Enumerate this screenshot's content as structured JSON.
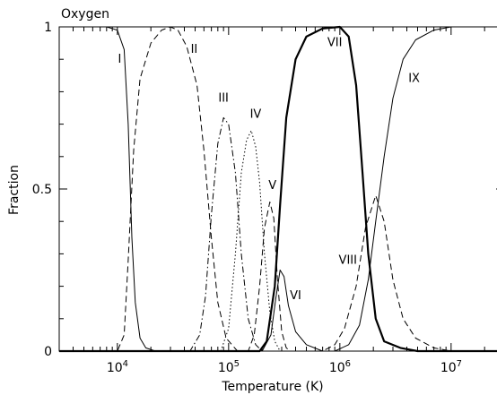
{
  "chart_data": {
    "type": "line",
    "title": "Oxygen",
    "xlabel": "Temperature (K)",
    "ylabel": "Fraction",
    "xscale": "log",
    "xlim": [
      3000,
      30000000
    ],
    "ylim": [
      0,
      1
    ],
    "x_ticks": [
      {
        "value": 10000,
        "base": "10",
        "exp": "4"
      },
      {
        "value": 100000,
        "base": "10",
        "exp": "5"
      },
      {
        "value": 1000000,
        "base": "10",
        "exp": "6"
      },
      {
        "value": 10000000,
        "base": "10",
        "exp": "7"
      }
    ],
    "y_ticks": [
      {
        "value": 0,
        "label": "0"
      },
      {
        "value": 0.5,
        "label": "0.5"
      },
      {
        "value": 1,
        "label": "1"
      }
    ],
    "grid": false,
    "legend": "none",
    "series": [
      {
        "label": "I",
        "style": "solid",
        "stroke": "#000000",
        "width": 1,
        "label_at": [
          10500,
          0.89
        ],
        "points": [
          [
            3000,
            1.0
          ],
          [
            8000,
            1.0
          ],
          [
            10000,
            0.99
          ],
          [
            11500,
            0.93
          ],
          [
            12500,
            0.7
          ],
          [
            13500,
            0.35
          ],
          [
            14500,
            0.15
          ],
          [
            16000,
            0.04
          ],
          [
            18000,
            0.01
          ],
          [
            22000,
            0.0
          ],
          [
            30000000,
            0.0
          ]
        ]
      },
      {
        "label": "II",
        "style": "dashed",
        "stroke": "#000000",
        "width": 1,
        "label_at": [
          49000,
          0.92
        ],
        "points": [
          [
            3000,
            0.0
          ],
          [
            10000,
            0.0
          ],
          [
            11500,
            0.05
          ],
          [
            12500,
            0.28
          ],
          [
            14000,
            0.62
          ],
          [
            16000,
            0.84
          ],
          [
            20000,
            0.95
          ],
          [
            25000,
            0.99
          ],
          [
            30000,
            1.0
          ],
          [
            35000,
            0.99
          ],
          [
            42000,
            0.94
          ],
          [
            52000,
            0.82
          ],
          [
            60000,
            0.62
          ],
          [
            70000,
            0.35
          ],
          [
            80000,
            0.15
          ],
          [
            95000,
            0.04
          ],
          [
            120000,
            0.0
          ],
          [
            30000000,
            0.0
          ]
        ]
      },
      {
        "label": "III",
        "style": "dashdot",
        "stroke": "#000000",
        "width": 1,
        "label_at": [
          90000,
          0.77
        ],
        "points": [
          [
            3000,
            0.0
          ],
          [
            45000,
            0.0
          ],
          [
            55000,
            0.05
          ],
          [
            62000,
            0.17
          ],
          [
            70000,
            0.42
          ],
          [
            80000,
            0.64
          ],
          [
            90000,
            0.72
          ],
          [
            100000,
            0.7
          ],
          [
            115000,
            0.55
          ],
          [
            130000,
            0.3
          ],
          [
            150000,
            0.1
          ],
          [
            175000,
            0.02
          ],
          [
            200000,
            0.0
          ],
          [
            30000000,
            0.0
          ]
        ]
      },
      {
        "label": "IV",
        "style": "dotted",
        "stroke": "#000000",
        "width": 1,
        "label_at": [
          175000,
          0.72
        ],
        "points": [
          [
            3000,
            0.0
          ],
          [
            85000,
            0.0
          ],
          [
            100000,
            0.07
          ],
          [
            115000,
            0.3
          ],
          [
            130000,
            0.55
          ],
          [
            145000,
            0.65
          ],
          [
            160000,
            0.68
          ],
          [
            175000,
            0.63
          ],
          [
            190000,
            0.52
          ],
          [
            210000,
            0.3
          ],
          [
            235000,
            0.12
          ],
          [
            260000,
            0.03
          ],
          [
            290000,
            0.0
          ],
          [
            30000000,
            0.0
          ]
        ]
      },
      {
        "label": "V",
        "style": "dashed",
        "stroke": "#000000",
        "width": 1,
        "label_at": [
          248000,
          0.5
        ],
        "points": [
          [
            3000,
            0.0
          ],
          [
            150000,
            0.0
          ],
          [
            170000,
            0.05
          ],
          [
            190000,
            0.2
          ],
          [
            210000,
            0.38
          ],
          [
            235000,
            0.46
          ],
          [
            255000,
            0.41
          ],
          [
            275000,
            0.22
          ],
          [
            300000,
            0.06
          ],
          [
            330000,
            0.01
          ],
          [
            360000,
            0.0
          ],
          [
            30000000,
            0.0
          ]
        ]
      },
      {
        "label": "VI",
        "style": "solid",
        "stroke": "#000000",
        "width": 1,
        "label_at": [
          400000,
          0.16
        ],
        "points": [
          [
            3000,
            0.0
          ],
          [
            200000,
            0.0
          ],
          [
            240000,
            0.05
          ],
          [
            265000,
            0.16
          ],
          [
            290000,
            0.25
          ],
          [
            315000,
            0.23
          ],
          [
            345000,
            0.14
          ],
          [
            400000,
            0.06
          ],
          [
            500000,
            0.02
          ],
          [
            700000,
            0.0
          ],
          [
            30000000,
            0.0
          ]
        ]
      },
      {
        "label": "VII",
        "style": "solid",
        "stroke": "#000000",
        "width": 2.2,
        "label_at": [
          900000,
          0.94
        ],
        "points": [
          [
            3000,
            0.0
          ],
          [
            190000,
            0.0
          ],
          [
            220000,
            0.03
          ],
          [
            260000,
            0.2
          ],
          [
            290000,
            0.45
          ],
          [
            330000,
            0.72
          ],
          [
            400000,
            0.9
          ],
          [
            500000,
            0.97
          ],
          [
            700000,
            0.995
          ],
          [
            1000000,
            1.0
          ],
          [
            1200000,
            0.97
          ],
          [
            1400000,
            0.82
          ],
          [
            1600000,
            0.55
          ],
          [
            1800000,
            0.3
          ],
          [
            2100000,
            0.1
          ],
          [
            2500000,
            0.03
          ],
          [
            3500000,
            0.01
          ],
          [
            5000000,
            0.0
          ],
          [
            30000000,
            0.0
          ]
        ]
      },
      {
        "label": "VIII",
        "style": "dashed",
        "stroke": "#000000",
        "width": 1,
        "label_at": [
          1180000,
          0.27
        ],
        "points": [
          [
            3000,
            0.0
          ],
          [
            700000,
            0.0
          ],
          [
            900000,
            0.02
          ],
          [
            1100000,
            0.07
          ],
          [
            1400000,
            0.2
          ],
          [
            1700000,
            0.38
          ],
          [
            2100000,
            0.48
          ],
          [
            2500000,
            0.4
          ],
          [
            3000000,
            0.22
          ],
          [
            3700000,
            0.1
          ],
          [
            4800000,
            0.04
          ],
          [
            7000000,
            0.01
          ],
          [
            10000000,
            0.0
          ],
          [
            30000000,
            0.0
          ]
        ]
      },
      {
        "label": "IX",
        "style": "solid",
        "stroke": "#000000",
        "width": 1,
        "label_at": [
          4650000,
          0.83
        ],
        "points": [
          [
            3000,
            0.0
          ],
          [
            900000,
            0.0
          ],
          [
            1200000,
            0.02
          ],
          [
            1500000,
            0.08
          ],
          [
            1800000,
            0.22
          ],
          [
            2100000,
            0.4
          ],
          [
            2500000,
            0.6
          ],
          [
            3000000,
            0.78
          ],
          [
            3700000,
            0.9
          ],
          [
            4800000,
            0.96
          ],
          [
            7000000,
            0.99
          ],
          [
            10000000,
            1.0
          ],
          [
            30000000,
            1.0
          ]
        ]
      }
    ]
  }
}
